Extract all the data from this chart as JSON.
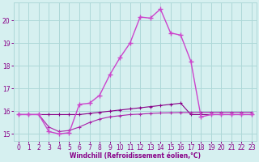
{
  "xlabel": "Windchill (Refroidissement éolien,°C)",
  "background_color": "#d6f0f0",
  "grid_color": "#add8d8",
  "xlim": [
    -0.5,
    23.5
  ],
  "ylim": [
    14.7,
    20.8
  ],
  "yticks": [
    15,
    16,
    17,
    18,
    19,
    20
  ],
  "xticks": [
    0,
    1,
    2,
    3,
    4,
    5,
    6,
    7,
    8,
    9,
    10,
    11,
    12,
    13,
    14,
    15,
    16,
    17,
    18,
    19,
    20,
    21,
    22,
    23
  ],
  "line_dark": "#880088",
  "line_mid": "#aa22aa",
  "line_light": "#cc44cc",
  "series_main_x": [
    0,
    1,
    2,
    3,
    4,
    5,
    6,
    7,
    8,
    9,
    10,
    11,
    12,
    13,
    14,
    15,
    16,
    17,
    18,
    19,
    20,
    21,
    22,
    23
  ],
  "series_main_y": [
    15.85,
    15.85,
    15.85,
    15.85,
    15.85,
    15.85,
    15.85,
    15.9,
    15.95,
    16.0,
    16.05,
    16.1,
    16.15,
    16.2,
    16.25,
    16.3,
    16.35,
    15.85,
    15.85,
    15.85,
    15.85,
    15.85,
    15.85,
    15.85
  ],
  "series_mid_x": [
    0,
    1,
    2,
    3,
    4,
    5,
    6,
    7,
    8,
    9,
    10,
    11,
    12,
    13,
    14,
    15,
    16,
    17,
    18,
    19,
    20,
    21,
    22,
    23
  ],
  "series_mid_y": [
    15.85,
    15.85,
    15.85,
    15.3,
    15.1,
    15.15,
    15.3,
    15.5,
    15.65,
    15.75,
    15.8,
    15.85,
    15.87,
    15.9,
    15.92,
    15.93,
    15.94,
    15.94,
    15.95,
    15.95,
    15.95,
    15.95,
    15.95,
    15.95
  ],
  "series_peak_x": [
    0,
    1,
    2,
    3,
    4,
    5,
    6,
    7,
    8,
    9,
    10,
    11,
    12,
    13,
    14,
    15,
    16,
    17,
    18,
    19,
    20,
    21,
    22,
    23
  ],
  "series_peak_y": [
    15.85,
    15.85,
    15.85,
    15.1,
    15.0,
    15.05,
    16.3,
    16.35,
    16.7,
    17.6,
    18.35,
    19.0,
    20.15,
    20.1,
    20.5,
    19.45,
    19.35,
    18.2,
    15.75,
    15.85,
    15.85,
    15.85,
    15.85,
    15.85
  ]
}
